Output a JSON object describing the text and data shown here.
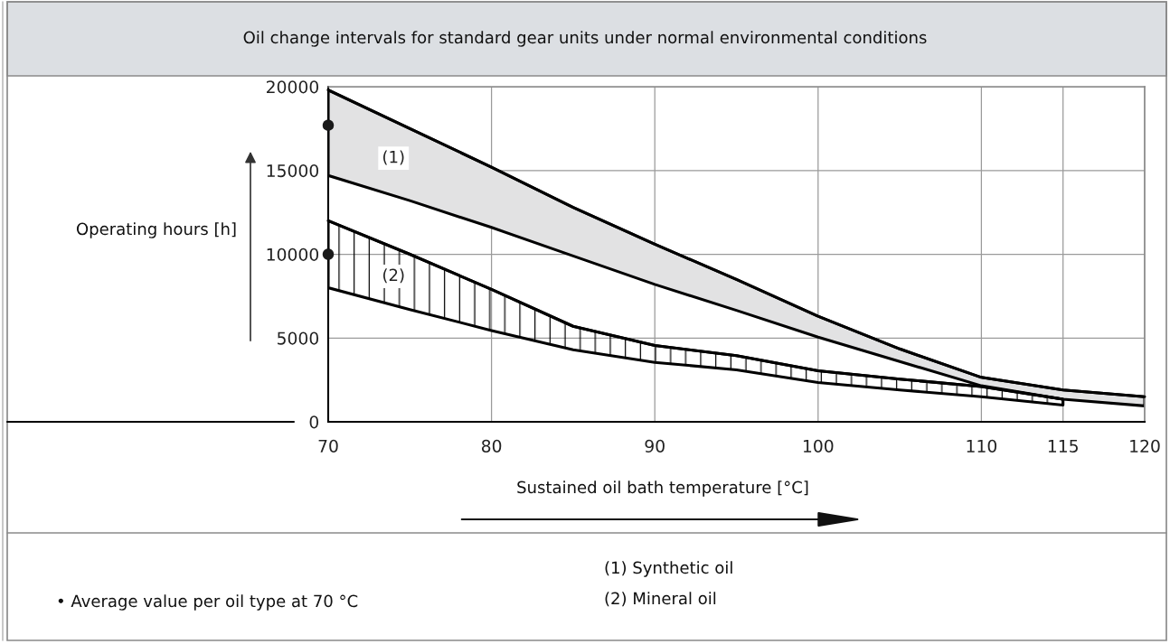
{
  "chart_data": {
    "type": "line",
    "title": "Oil change intervals for standard gear units under normal environmental conditions",
    "xlabel": "Sustained oil bath temperature [°C]",
    "ylabel": "Operating hours [h]",
    "annotations": [
      "• Average value per oil type at 70 °C",
      "(1) Synthetic oil",
      "(2) Mineral oil"
    ],
    "xlim": [
      70,
      120
    ],
    "ylim": [
      0,
      20000
    ],
    "xticks": [
      70,
      80,
      90,
      100,
      110,
      115,
      120
    ],
    "yticks": [
      0,
      5000,
      10000,
      15000,
      20000
    ],
    "grid": true,
    "series": [
      {
        "name": "(1)",
        "color": "#000000",
        "x": [
          70,
          75,
          80,
          85,
          90,
          95,
          100,
          105,
          110,
          115,
          120
        ],
        "values": [
          19800,
          17500,
          15200,
          12800,
          10600,
          8500,
          6300,
          4350,
          2650,
          1900,
          1500
        ],
        "upper": [
          19800,
          17500,
          15200,
          12800,
          10600,
          8500,
          6300,
          4350,
          2650,
          1900,
          1500
        ],
        "lower": [
          14700,
          13200,
          11600,
          9900,
          8200,
          6650,
          5050,
          3600,
          2150,
          1350,
          950
        ]
      },
      {
        "name": "(2)",
        "color": "#000000",
        "x": [
          70,
          75,
          80,
          85,
          90,
          95,
          100,
          105,
          110,
          115
        ],
        "values": [
          12000,
          10000,
          7900,
          5700,
          4550,
          3950,
          3050,
          2550,
          2100,
          1350
        ],
        "upper": [
          12000,
          10000,
          7900,
          5700,
          4550,
          3950,
          3050,
          2550,
          2100,
          1350
        ],
        "lower": [
          8000,
          6700,
          5450,
          4300,
          3550,
          3100,
          2350,
          1900,
          1500,
          1000
        ]
      },
      {
        "type": "scatter",
        "color": "#1a1a1a",
        "marker": "circle",
        "x": [
          70,
          70
        ],
        "values": [
          17700,
          10000
        ]
      }
    ]
  }
}
